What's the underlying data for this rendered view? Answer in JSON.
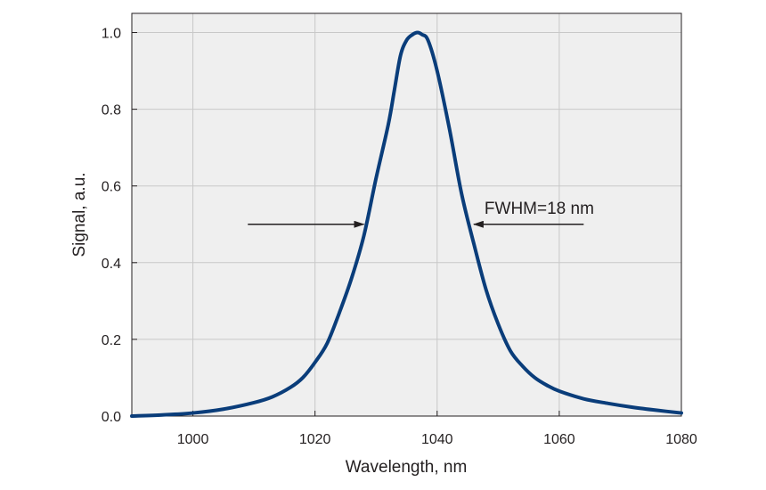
{
  "chart_data": {
    "type": "line",
    "title": "",
    "xlabel": "Wavelength, nm",
    "ylabel": "Signal, a.u.",
    "xlim": [
      990,
      1080
    ],
    "ylim": [
      0,
      1.05
    ],
    "grid": true,
    "line_color": "#0a3d7a",
    "plot_background": "#efefef",
    "gridline_color": "#c8c8c8",
    "x_ticks": [
      {
        "value": 1000,
        "label": "1000"
      },
      {
        "value": 1020,
        "label": "1020"
      },
      {
        "value": 1040,
        "label": "1040"
      },
      {
        "value": 1060,
        "label": "1060"
      },
      {
        "value": 1080,
        "label": "1080"
      }
    ],
    "y_ticks": [
      {
        "value": 0.0,
        "label": "0.0"
      },
      {
        "value": 0.2,
        "label": "0.2"
      },
      {
        "value": 0.4,
        "label": "0.4"
      },
      {
        "value": 0.6,
        "label": "0.6"
      },
      {
        "value": 0.8,
        "label": "0.8"
      },
      {
        "value": 1.0,
        "label": "1.0"
      }
    ],
    "series": [
      {
        "x": [
          990,
          995,
          1000,
          1005,
          1010,
          1013,
          1016,
          1018,
          1020,
          1022,
          1024,
          1026,
          1028,
          1030,
          1032,
          1033,
          1034,
          1035,
          1036,
          1036.8,
          1037.5,
          1038.5,
          1040,
          1042,
          1044,
          1046,
          1048,
          1050,
          1052,
          1054,
          1056,
          1058,
          1060,
          1064,
          1068,
          1072,
          1076,
          1080
        ],
        "y": [
          0.0,
          0.003,
          0.008,
          0.018,
          0.035,
          0.05,
          0.075,
          0.1,
          0.14,
          0.19,
          0.27,
          0.36,
          0.47,
          0.62,
          0.76,
          0.85,
          0.94,
          0.98,
          0.995,
          1.0,
          0.995,
          0.98,
          0.9,
          0.75,
          0.58,
          0.45,
          0.33,
          0.24,
          0.17,
          0.13,
          0.1,
          0.08,
          0.065,
          0.045,
          0.033,
          0.023,
          0.015,
          0.008
        ]
      }
    ],
    "annotation": {
      "text": "FWHM=18 nm",
      "y_level": 0.5,
      "left_arrow": {
        "from_x": 1009,
        "to_x": 1028
      },
      "right_arrow": {
        "from_x": 1064,
        "to_x": 1046
      }
    }
  }
}
